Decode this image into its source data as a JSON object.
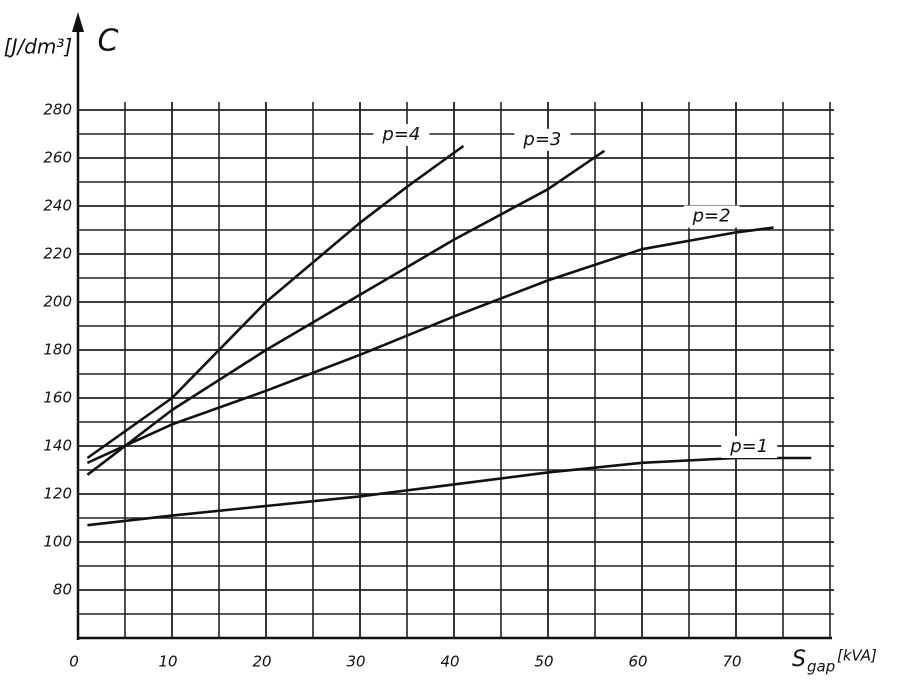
{
  "chart_data": {
    "type": "line",
    "y_unit": "[J/dm³]",
    "y_label": "C",
    "x_label": "S",
    "x_label_sub": "gap",
    "x_unit": "[kVA]",
    "xlim": [
      0,
      80
    ],
    "xticks": [
      0,
      10,
      20,
      30,
      40,
      50,
      60,
      70
    ],
    "ylim": [
      60,
      280
    ],
    "yticks": [
      80,
      100,
      120,
      140,
      160,
      180,
      200,
      220,
      240,
      260,
      280
    ],
    "grid": true,
    "series": [
      {
        "name": "p=1",
        "color": "#111111",
        "x": [
          1,
          10,
          20,
          30,
          40,
          50,
          60,
          70,
          78
        ],
        "values": [
          107,
          111,
          115,
          119,
          124,
          129,
          133,
          135,
          135
        ]
      },
      {
        "name": "p=2",
        "color": "#111111",
        "x": [
          1,
          10,
          20,
          30,
          40,
          50,
          60,
          70,
          74
        ],
        "values": [
          133,
          149,
          163,
          178,
          194,
          209,
          222,
          229,
          231
        ]
      },
      {
        "name": "p=3",
        "color": "#111111",
        "x": [
          1,
          10,
          20,
          30,
          40,
          50,
          56
        ],
        "values": [
          128,
          155,
          180,
          203,
          226,
          247,
          263
        ]
      },
      {
        "name": "p=4",
        "color": "#111111",
        "x": [
          1,
          10,
          20,
          30,
          35,
          41
        ],
        "values": [
          135,
          160,
          200,
          233,
          248,
          265
        ]
      }
    ]
  }
}
